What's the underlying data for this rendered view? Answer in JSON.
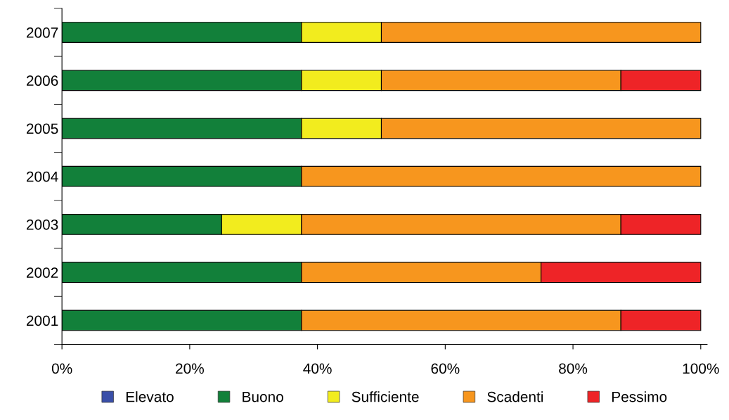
{
  "chart_data": {
    "type": "bar",
    "orientation": "horizontal",
    "stacked": true,
    "categories": [
      "2007",
      "2006",
      "2005",
      "2004",
      "2003",
      "2002",
      "2001"
    ],
    "series": [
      {
        "name": "Elevato",
        "color": "#3a4fa8",
        "values": [
          0,
          0,
          0,
          0,
          0,
          0,
          0
        ]
      },
      {
        "name": "Buono",
        "color": "#12803a",
        "values": [
          37.5,
          37.5,
          37.5,
          37.5,
          25,
          37.5,
          37.5
        ]
      },
      {
        "name": "Sufficiente",
        "color": "#f2ec1e",
        "values": [
          12.5,
          12.5,
          12.5,
          0,
          12.5,
          0,
          0
        ]
      },
      {
        "name": "Scadenti",
        "color": "#f7961e",
        "values": [
          50,
          37.5,
          50,
          62.5,
          50,
          37.5,
          50
        ]
      },
      {
        "name": "Pessimo",
        "color": "#ee2427",
        "values": [
          0,
          12.5,
          0,
          0,
          12.5,
          25,
          12.5
        ]
      }
    ],
    "xlim": [
      0,
      101
    ],
    "xticks": [
      {
        "value": 0,
        "label": "0%"
      },
      {
        "value": 20,
        "label": "20%"
      },
      {
        "value": 40,
        "label": "40%"
      },
      {
        "value": 60,
        "label": "60%"
      },
      {
        "value": 80,
        "label": "80%"
      },
      {
        "value": 100,
        "label": "100%"
      }
    ],
    "grid": false,
    "legend": "bottom"
  }
}
